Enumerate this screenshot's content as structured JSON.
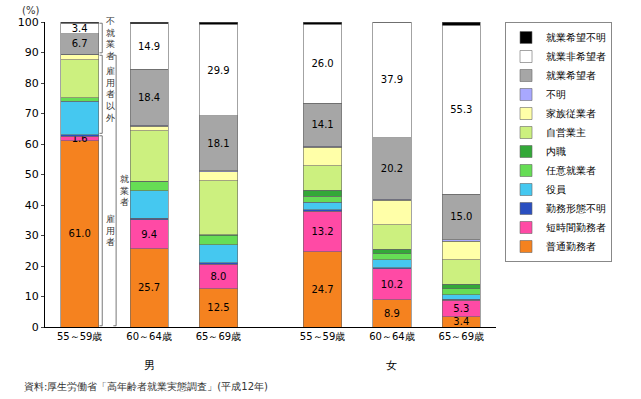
{
  "chart_data": {
    "type": "bar",
    "stacked": true,
    "data_labels": true,
    "legend": "right",
    "grid": false,
    "y_label": "(%)",
    "source": "資料:厚生労働省「高年齢者就業実態調査」(平成12年)",
    "categories": [
      "55～59歳",
      "60～64歳",
      "65～69歳",
      "55～59歳",
      "60～64歳",
      "65～69歳"
    ],
    "groups": [
      {
        "label": "男",
        "size": 3
      },
      {
        "label": "女",
        "size": 3
      }
    ],
    "ylim": [
      0,
      100
    ],
    "yticks": [
      0,
      10,
      20,
      30,
      40,
      50,
      60,
      70,
      80,
      90,
      100
    ],
    "series": [
      {
        "name": "普通勤務者",
        "color": "#f5821f",
        "values": [
          61.0,
          25.7,
          12.5,
          24.7,
          8.9,
          3.4
        ],
        "value_labels": [
          "61.0",
          "25.7",
          "12.5",
          "24.7",
          "8.9",
          "3.4"
        ]
      },
      {
        "name": "短時間勤務者",
        "color": "#ff4aa5",
        "values": [
          1.6,
          9.4,
          8.0,
          13.2,
          10.2,
          5.3
        ],
        "value_labels": [
          "1.6",
          "9.4",
          "8.0",
          "13.2",
          "10.2",
          "5.3"
        ]
      },
      {
        "name": "勤務形態不明",
        "color": "#2a4fc0",
        "values": [
          0.5,
          0.5,
          0.5,
          0.5,
          0.4,
          0.4
        ]
      },
      {
        "name": "役員",
        "color": "#45c8f0",
        "values": [
          11.0,
          9.0,
          6.0,
          2.5,
          2.5,
          1.5
        ]
      },
      {
        "name": "任意就業者",
        "color": "#66dd55",
        "values": [
          1.0,
          3.0,
          3.0,
          2.0,
          2.0,
          2.0
        ]
      },
      {
        "name": "内職",
        "color": "#33a838",
        "values": [
          0.1,
          0.2,
          0.3,
          2.0,
          1.5,
          1.5
        ]
      },
      {
        "name": "自営業主",
        "color": "#ccf07f",
        "values": [
          12.5,
          16.5,
          17.6,
          8.0,
          8.0,
          8.0
        ]
      },
      {
        "name": "家族従業者",
        "color": "#ffffa8",
        "values": [
          1.5,
          1.5,
          3.0,
          6.0,
          8.0,
          6.0
        ]
      },
      {
        "name": "不明",
        "color": "#a8a8ff",
        "values": [
          0.3,
          0.3,
          0.3,
          0.3,
          0.4,
          0.5
        ]
      },
      {
        "name": "就業希望者",
        "color": "#a6a6a6",
        "values": [
          6.7,
          18.4,
          18.1,
          14.1,
          20.2,
          15.0
        ],
        "value_labels": [
          "6.7",
          "18.4",
          "18.1",
          "14.1",
          "20.2",
          "15.0"
        ]
      },
      {
        "name": "就業非希望者",
        "color": "#ffffff",
        "values": [
          3.4,
          14.9,
          29.9,
          26.0,
          37.9,
          55.3
        ],
        "value_labels": [
          "3.4",
          "14.9",
          "29.9",
          "26.0",
          "37.9",
          "55.3"
        ]
      },
      {
        "name": "就業希望不明",
        "color": "#000000",
        "values": [
          0.4,
          0.5,
          0.8,
          0.7,
          0.0,
          1.1
        ]
      }
    ],
    "brackets": [
      {
        "text": "不就業者",
        "series": [
          "就業希望者",
          "就業非希望者",
          "就業希望不明"
        ]
      },
      {
        "text": "雇用者以外",
        "series": [
          "役員",
          "任意就業者",
          "内職",
          "自営業主",
          "家族従業者",
          "不明"
        ]
      },
      {
        "text": "就業者",
        "series": [
          "普通勤務者",
          "短時間勤務者",
          "勤務形態不明",
          "役員",
          "任意就業者",
          "内職",
          "自営業主",
          "家族従業者",
          "不明"
        ]
      },
      {
        "text": "雇用者",
        "series": [
          "普通勤務者",
          "短時間勤務者",
          "勤務形態不明"
        ]
      }
    ]
  }
}
